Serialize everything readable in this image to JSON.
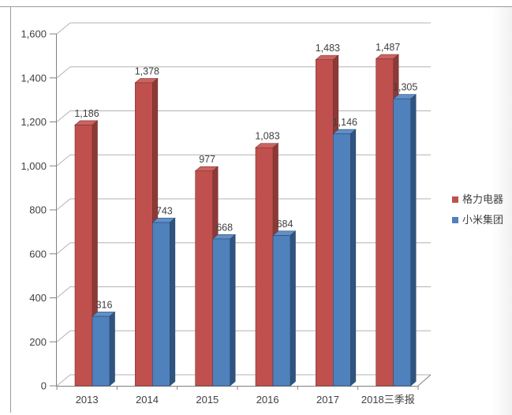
{
  "chart_data": {
    "type": "bar",
    "style": "3d-clustered-column",
    "title": "",
    "xlabel": "",
    "ylabel": "",
    "categories": [
      "2013",
      "2014",
      "2015",
      "2016",
      "2017",
      "2018三季报"
    ],
    "series": [
      {
        "name": "格力电器",
        "values": [
          1186,
          1378,
          977,
          1083,
          1483,
          1487
        ],
        "value_labels": [
          "1,186",
          "1,378",
          "977",
          "1,083",
          "1,483",
          "1,487"
        ],
        "color": "#c0504d",
        "color_side": "#8c3a37",
        "color_top": "#cb6461",
        "color_edge": "#7c2f2d"
      },
      {
        "name": "小米集团",
        "values": [
          316,
          743,
          668,
          684,
          1146,
          1305
        ],
        "value_labels": [
          "316",
          "743",
          "668",
          "684",
          "1,146",
          "1,305"
        ],
        "color": "#4f81bd",
        "color_side": "#2f5480",
        "color_top": "#6290c6",
        "color_edge": "#2a4a72"
      }
    ],
    "ylim": [
      0,
      1600
    ],
    "ytick_interval": 200,
    "ytick_labels": [
      "0",
      "200",
      "400",
      "600",
      "800",
      "1,000",
      "1,200",
      "1,400",
      "1,600"
    ],
    "grid": true,
    "legend_position": "right",
    "colors": {
      "axis_line": "#808080",
      "grid_line": "#b3b3b3",
      "text": "#404040"
    }
  },
  "legend": {
    "items": [
      {
        "label": "格力电器",
        "color": "#c0504d"
      },
      {
        "label": "小米集团",
        "color": "#4f81bd"
      }
    ]
  }
}
